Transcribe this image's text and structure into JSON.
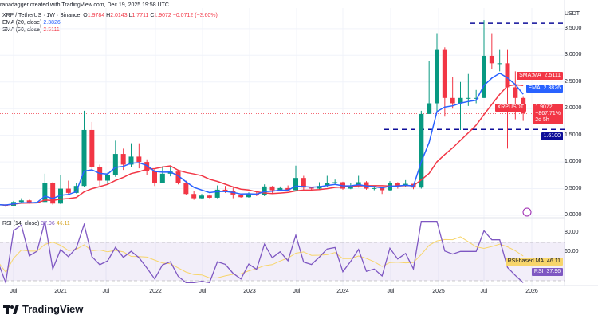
{
  "header": {
    "credit": "ranadagger created with TradingView.com, Dec 19, 2025 19:58 UTC",
    "symbol": "XRP / TetherUS · 1W · Binance",
    "o_label": "O",
    "o": "1.9784",
    "h_label": "H",
    "h": "2.0143",
    "l_label": "L",
    "l": "1.7711",
    "c_label": "C",
    "c": "1.9072",
    "change": "−0.0712 (−3.60%)",
    "ema_label": "EMA (20, close)",
    "ema_value": "2.3826",
    "sma_label": "SMA (50, close)",
    "sma_value": "2.5111",
    "rsi_label": "RSI (14, close)",
    "rsi_value": "37.96",
    "rsi_ma_value": "46.11"
  },
  "colors": {
    "up": "#089981",
    "down": "#f23645",
    "ema": "#2962ff",
    "sma": "#f23645",
    "rsi": "#7e57c2",
    "rsi_ma": "#f7d56b",
    "level": "#0d0d99"
  },
  "chart_data": [
    {
      "type": "candlestick",
      "title": "XRP / TetherUS · 1W · Binance",
      "y_unit": "USDT",
      "ylim": [
        0,
        3.6
      ],
      "y_ticks": [
        "3.5000",
        "3.0000",
        "2.5000",
        "2.0000",
        "1.5000",
        "1.0000",
        "0.5000",
        "0.0000"
      ],
      "x_ticks": [
        "Jul",
        "2021",
        "Jul",
        "2022",
        "Jul",
        "2023",
        "Jul",
        "2024",
        "Jul",
        "2025",
        "Jul",
        "2026"
      ],
      "x_start": "2020-05",
      "x_step": "month",
      "close": [
        0.2,
        0.18,
        0.25,
        0.28,
        0.24,
        0.25,
        0.6,
        0.22,
        0.5,
        0.42,
        0.55,
        1.6,
        0.9,
        0.65,
        0.75,
        1.15,
        0.95,
        1.1,
        1.0,
        0.83,
        0.6,
        0.78,
        0.82,
        0.6,
        0.4,
        0.32,
        0.37,
        0.33,
        0.48,
        0.46,
        0.39,
        0.34,
        0.41,
        0.38,
        0.54,
        0.47,
        0.51,
        0.47,
        0.7,
        0.52,
        0.5,
        0.55,
        0.61,
        0.62,
        0.5,
        0.55,
        0.62,
        0.5,
        0.51,
        0.47,
        0.61,
        0.56,
        0.59,
        0.52,
        1.9,
        2.1,
        3.1,
        2.2,
        2.1,
        2.2,
        2.2,
        2.2,
        2.99,
        2.85,
        2.85,
        2.4,
        2.2,
        1.91
      ],
      "high": [
        0.22,
        0.21,
        0.27,
        0.32,
        0.29,
        0.27,
        0.78,
        0.62,
        0.75,
        0.65,
        0.6,
        1.96,
        1.75,
        0.95,
        0.8,
        1.4,
        1.25,
        1.35,
        1.35,
        1.05,
        0.87,
        0.92,
        0.92,
        0.83,
        0.65,
        0.45,
        0.4,
        0.39,
        0.56,
        0.55,
        0.52,
        0.41,
        0.43,
        0.46,
        0.58,
        0.55,
        0.54,
        0.56,
        0.93,
        0.74,
        0.53,
        0.62,
        0.74,
        0.67,
        0.63,
        0.6,
        0.74,
        0.64,
        0.56,
        0.53,
        0.64,
        0.62,
        0.66,
        0.58,
        1.96,
        2.9,
        3.4,
        3.15,
        2.6,
        2.5,
        2.65,
        2.35,
        3.66,
        3.4,
        3.1,
        3.1,
        2.7,
        2.22
      ],
      "low": [
        0.17,
        0.17,
        0.18,
        0.24,
        0.22,
        0.23,
        0.25,
        0.2,
        0.21,
        0.38,
        0.41,
        0.53,
        0.85,
        0.55,
        0.58,
        0.72,
        0.85,
        0.9,
        0.88,
        0.75,
        0.55,
        0.62,
        0.73,
        0.58,
        0.38,
        0.29,
        0.3,
        0.32,
        0.32,
        0.42,
        0.32,
        0.33,
        0.33,
        0.36,
        0.36,
        0.42,
        0.45,
        0.45,
        0.47,
        0.45,
        0.47,
        0.48,
        0.53,
        0.58,
        0.48,
        0.49,
        0.52,
        0.48,
        0.47,
        0.4,
        0.45,
        0.5,
        0.53,
        0.49,
        0.5,
        1.9,
        1.95,
        1.85,
        2.0,
        1.6,
        2.05,
        2.1,
        2.2,
        2.75,
        2.7,
        1.25,
        1.8,
        1.77
      ],
      "price_label": "XRPUSDT",
      "price_value": "1.9072",
      "price_change_pct": "+867.71%",
      "countdown": "2d 5h",
      "sma_tag": "SMA:MA",
      "sma_tag_value": "2.5111",
      "ema_tag": "EMA",
      "ema_tag_value": "2.3826",
      "levels": [
        {
          "value": 3.6
        },
        {
          "value": 1.61,
          "label": "1.6100"
        }
      ]
    },
    {
      "type": "line",
      "title": "RSI (14, close)",
      "ylim": [
        20,
        100
      ],
      "y_ticks": [
        "80.00",
        "60.00"
      ],
      "band": [
        30,
        70
      ],
      "rsi_ma_tag": "RSI-based MA",
      "rsi_tag": "RSI"
    }
  ],
  "footer": {
    "brand": "TradingView"
  }
}
